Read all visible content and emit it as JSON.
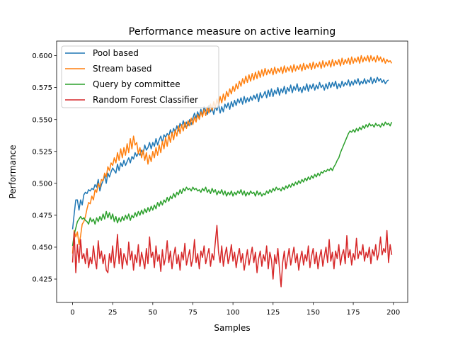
{
  "chart_data": {
    "type": "line",
    "title": "Performance measure on active learning",
    "xlabel": "Samples",
    "ylabel": "Performance",
    "xlim": [
      -9.95,
      208.95
    ],
    "ylim": [
      0.4067,
      0.6114
    ],
    "xticks": [
      0,
      25,
      50,
      75,
      100,
      125,
      150,
      175,
      200
    ],
    "yticks": [
      0.425,
      0.45,
      0.475,
      0.5,
      0.525,
      0.55,
      0.575,
      0.6
    ],
    "ytick_labels": [
      "0.425",
      "0.450",
      "0.475",
      "0.500",
      "0.525",
      "0.550",
      "0.575",
      "0.600"
    ],
    "grid": false,
    "legend": "top-left",
    "x": {
      "start": 0,
      "end": 199,
      "step": 1
    },
    "series": [
      {
        "name": "Pool based",
        "color": "#1f77b4",
        "values": [
          0.464,
          0.476,
          0.487,
          0.487,
          0.479,
          0.487,
          0.483,
          0.491,
          0.493,
          0.492,
          0.495,
          0.494,
          0.496,
          0.495,
          0.499,
          0.497,
          0.503,
          0.494,
          0.499,
          0.502,
          0.506,
          0.5,
          0.508,
          0.505,
          0.509,
          0.512,
          0.51,
          0.508,
          0.515,
          0.51,
          0.516,
          0.513,
          0.518,
          0.514,
          0.517,
          0.52,
          0.516,
          0.521,
          0.519,
          0.524,
          0.521,
          0.524,
          0.522,
          0.526,
          0.523,
          0.53,
          0.526,
          0.528,
          0.532,
          0.527,
          0.532,
          0.529,
          0.535,
          0.53,
          0.534,
          0.537,
          0.532,
          0.538,
          0.536,
          0.539,
          0.537,
          0.542,
          0.538,
          0.543,
          0.54,
          0.545,
          0.541,
          0.547,
          0.544,
          0.549,
          0.544,
          0.548,
          0.545,
          0.55,
          0.546,
          0.551,
          0.555,
          0.551,
          0.556,
          0.552,
          0.558,
          0.553,
          0.56,
          0.557,
          0.554,
          0.561,
          0.556,
          0.559,
          0.554,
          0.56,
          0.557,
          0.562,
          0.555,
          0.56,
          0.556,
          0.562,
          0.559,
          0.563,
          0.558,
          0.564,
          0.56,
          0.565,
          0.561,
          0.566,
          0.563,
          0.567,
          0.562,
          0.568,
          0.563,
          0.567,
          0.564,
          0.568,
          0.565,
          0.569,
          0.566,
          0.57,
          0.564,
          0.571,
          0.567,
          0.569,
          0.572,
          0.567,
          0.573,
          0.568,
          0.574,
          0.568,
          0.573,
          0.57,
          0.575,
          0.569,
          0.574,
          0.571,
          0.576,
          0.57,
          0.575,
          0.572,
          0.577,
          0.571,
          0.576,
          0.573,
          0.578,
          0.572,
          0.575,
          0.571,
          0.576,
          0.573,
          0.578,
          0.572,
          0.577,
          0.574,
          0.578,
          0.573,
          0.577,
          0.574,
          0.579,
          0.575,
          0.577,
          0.573,
          0.578,
          0.574,
          0.579,
          0.575,
          0.579,
          0.576,
          0.58,
          0.574,
          0.578,
          0.575,
          0.58,
          0.576,
          0.579,
          0.577,
          0.581,
          0.576,
          0.58,
          0.577,
          0.581,
          0.578,
          0.582,
          0.577,
          0.58,
          0.578,
          0.582,
          0.578,
          0.581,
          0.579,
          0.583,
          0.578,
          0.582,
          0.579,
          0.583,
          0.58,
          0.582,
          0.579,
          0.581,
          0.578,
          0.58,
          0.581
        ]
      },
      {
        "name": "Stream based",
        "color": "#ff7f0e",
        "values": [
          0.445,
          0.463,
          0.458,
          0.462,
          0.452,
          0.459,
          0.468,
          0.47,
          0.474,
          0.48,
          0.485,
          0.484,
          0.49,
          0.487,
          0.495,
          0.493,
          0.5,
          0.497,
          0.503,
          0.502,
          0.508,
          0.505,
          0.513,
          0.51,
          0.516,
          0.514,
          0.52,
          0.516,
          0.524,
          0.518,
          0.527,
          0.52,
          0.528,
          0.522,
          0.531,
          0.524,
          0.535,
          0.527,
          0.537,
          0.53,
          0.532,
          0.523,
          0.528,
          0.52,
          0.526,
          0.518,
          0.524,
          0.515,
          0.522,
          0.517,
          0.525,
          0.52,
          0.528,
          0.522,
          0.53,
          0.524,
          0.533,
          0.527,
          0.536,
          0.529,
          0.538,
          0.532,
          0.54,
          0.534,
          0.542,
          0.537,
          0.545,
          0.539,
          0.546,
          0.541,
          0.548,
          0.543,
          0.549,
          0.545,
          0.551,
          0.546,
          0.552,
          0.548,
          0.554,
          0.55,
          0.556,
          0.552,
          0.558,
          0.553,
          0.56,
          0.555,
          0.562,
          0.557,
          0.564,
          0.559,
          0.566,
          0.561,
          0.568,
          0.563,
          0.57,
          0.565,
          0.572,
          0.568,
          0.574,
          0.57,
          0.576,
          0.572,
          0.578,
          0.574,
          0.58,
          0.576,
          0.582,
          0.578,
          0.584,
          0.579,
          0.585,
          0.58,
          0.586,
          0.581,
          0.587,
          0.582,
          0.588,
          0.583,
          0.589,
          0.584,
          0.59,
          0.585,
          0.589,
          0.586,
          0.59,
          0.585,
          0.591,
          0.586,
          0.59,
          0.587,
          0.591,
          0.586,
          0.592,
          0.587,
          0.591,
          0.588,
          0.592,
          0.587,
          0.593,
          0.588,
          0.592,
          0.589,
          0.593,
          0.588,
          0.594,
          0.589,
          0.593,
          0.59,
          0.594,
          0.589,
          0.595,
          0.59,
          0.594,
          0.591,
          0.595,
          0.59,
          0.596,
          0.591,
          0.595,
          0.592,
          0.596,
          0.591,
          0.597,
          0.592,
          0.596,
          0.593,
          0.597,
          0.592,
          0.598,
          0.593,
          0.597,
          0.594,
          0.598,
          0.593,
          0.599,
          0.594,
          0.598,
          0.595,
          0.599,
          0.594,
          0.6,
          0.595,
          0.599,
          0.596,
          0.6,
          0.595,
          0.6,
          0.596,
          0.599,
          0.595,
          0.6,
          0.596,
          0.599,
          0.595,
          0.598,
          0.594,
          0.597,
          0.595,
          0.596,
          0.594,
          0.598,
          0.597,
          0.595,
          0.594
        ]
      },
      {
        "name": "Query by committee",
        "color": "#2ca02c",
        "values": [
          0.451,
          0.46,
          0.465,
          0.47,
          0.472,
          0.474,
          0.472,
          0.473,
          0.471,
          0.47,
          0.468,
          0.473,
          0.47,
          0.472,
          0.468,
          0.473,
          0.47,
          0.474,
          0.471,
          0.476,
          0.472,
          0.478,
          0.473,
          0.477,
          0.472,
          0.476,
          0.47,
          0.474,
          0.469,
          0.473,
          0.47,
          0.474,
          0.471,
          0.475,
          0.472,
          0.476,
          0.471,
          0.475,
          0.473,
          0.477,
          0.474,
          0.478,
          0.475,
          0.479,
          0.476,
          0.48,
          0.477,
          0.481,
          0.478,
          0.482,
          0.479,
          0.483,
          0.48,
          0.485,
          0.482,
          0.486,
          0.483,
          0.487,
          0.485,
          0.489,
          0.486,
          0.49,
          0.488,
          0.492,
          0.489,
          0.493,
          0.491,
          0.495,
          0.492,
          0.496,
          0.494,
          0.497,
          0.495,
          0.496,
          0.494,
          0.497,
          0.495,
          0.496,
          0.494,
          0.495,
          0.493,
          0.496,
          0.494,
          0.497,
          0.493,
          0.495,
          0.492,
          0.496,
          0.493,
          0.495,
          0.491,
          0.494,
          0.492,
          0.495,
          0.491,
          0.494,
          0.49,
          0.493,
          0.491,
          0.494,
          0.49,
          0.493,
          0.491,
          0.494,
          0.492,
          0.495,
          0.491,
          0.494,
          0.49,
          0.493,
          0.491,
          0.494,
          0.492,
          0.493,
          0.49,
          0.494,
          0.491,
          0.493,
          0.49,
          0.492,
          0.491,
          0.494,
          0.492,
          0.495,
          0.493,
          0.496,
          0.494,
          0.497,
          0.495,
          0.496,
          0.494,
          0.497,
          0.495,
          0.498,
          0.496,
          0.499,
          0.497,
          0.5,
          0.498,
          0.501,
          0.499,
          0.502,
          0.5,
          0.503,
          0.501,
          0.504,
          0.502,
          0.505,
          0.503,
          0.506,
          0.504,
          0.507,
          0.505,
          0.508,
          0.506,
          0.509,
          0.508,
          0.51,
          0.509,
          0.511,
          0.51,
          0.512,
          0.51,
          0.513,
          0.515,
          0.518,
          0.52,
          0.524,
          0.527,
          0.53,
          0.533,
          0.536,
          0.539,
          0.541,
          0.54,
          0.542,
          0.54,
          0.543,
          0.541,
          0.544,
          0.542,
          0.545,
          0.543,
          0.546,
          0.544,
          0.547,
          0.545,
          0.546,
          0.544,
          0.547,
          0.545,
          0.546,
          0.544,
          0.547,
          0.545,
          0.548,
          0.546,
          0.547,
          0.545,
          0.548,
          0.546,
          0.547,
          0.548,
          0.549,
          0.55,
          0.55
        ]
      },
      {
        "name": "Random Forest Classifier",
        "color": "#d62728",
        "values": [
          0.438,
          0.462,
          0.43,
          0.452,
          0.438,
          0.456,
          0.441,
          0.445,
          0.437,
          0.449,
          0.434,
          0.442,
          0.437,
          0.451,
          0.44,
          0.433,
          0.455,
          0.441,
          0.447,
          0.437,
          0.444,
          0.432,
          0.43,
          0.445,
          0.438,
          0.451,
          0.434,
          0.443,
          0.46,
          0.437,
          0.449,
          0.433,
          0.445,
          0.441,
          0.436,
          0.454,
          0.44,
          0.447,
          0.432,
          0.444,
          0.438,
          0.452,
          0.435,
          0.446,
          0.44,
          0.433,
          0.449,
          0.437,
          0.458,
          0.442,
          0.446,
          0.434,
          0.451,
          0.439,
          0.444,
          0.431,
          0.448,
          0.436,
          0.442,
          0.455,
          0.438,
          0.447,
          0.433,
          0.443,
          0.45,
          0.437,
          0.444,
          0.432,
          0.446,
          0.44,
          0.453,
          0.436,
          0.442,
          0.448,
          0.435,
          0.441,
          0.456,
          0.438,
          0.445,
          0.433,
          0.447,
          0.442,
          0.451,
          0.437,
          0.443,
          0.449,
          0.435,
          0.445,
          0.44,
          0.454,
          0.467,
          0.446,
          0.438,
          0.451,
          0.435,
          0.444,
          0.45,
          0.437,
          0.443,
          0.452,
          0.439,
          0.446,
          0.434,
          0.443,
          0.449,
          0.438,
          0.445,
          0.432,
          0.44,
          0.448,
          0.436,
          0.443,
          0.45,
          0.438,
          0.446,
          0.43,
          0.441,
          0.447,
          0.435,
          0.444,
          0.439,
          0.451,
          0.433,
          0.446,
          0.44,
          0.425,
          0.444,
          0.437,
          0.449,
          0.433,
          0.419,
          0.438,
          0.447,
          0.433,
          0.441,
          0.449,
          0.436,
          0.443,
          0.45,
          0.438,
          0.445,
          0.432,
          0.441,
          0.447,
          0.436,
          0.444,
          0.439,
          0.451,
          0.434,
          0.443,
          0.449,
          0.437,
          0.446,
          0.433,
          0.442,
          0.448,
          0.435,
          0.443,
          0.45,
          0.438,
          0.456,
          0.439,
          0.446,
          0.433,
          0.447,
          0.441,
          0.452,
          0.436,
          0.444,
          0.448,
          0.437,
          0.459,
          0.442,
          0.448,
          0.436,
          0.445,
          0.44,
          0.457,
          0.441,
          0.447,
          0.444,
          0.452,
          0.439,
          0.446,
          0.442,
          0.45,
          0.437,
          0.448,
          0.443,
          0.452,
          0.44,
          0.446,
          0.458,
          0.444,
          0.449,
          0.446,
          0.463,
          0.438,
          0.452,
          0.444,
          0.448,
          0.432,
          0.441,
          0.452,
          0.433,
          0.414,
          0.431,
          0.432
        ]
      }
    ]
  }
}
